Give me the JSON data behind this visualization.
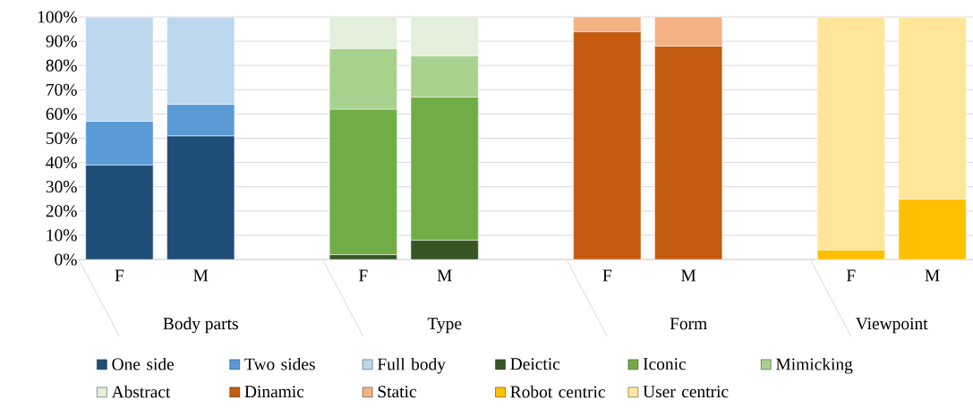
{
  "chart_data": {
    "type": "bar",
    "stacked": true,
    "categories": [
      "F",
      "M",
      null,
      "F",
      "M",
      null,
      "F",
      "M",
      null,
      "F",
      "M"
    ],
    "series": [
      {
        "name": "One side",
        "color": "#1f4e79",
        "values": [
          39,
          51,
          null,
          null,
          null,
          null,
          null,
          null,
          null,
          null,
          null
        ]
      },
      {
        "name": "Two sides",
        "color": "#5b9bd5",
        "values": [
          18,
          13,
          null,
          null,
          null,
          null,
          null,
          null,
          null,
          null,
          null
        ]
      },
      {
        "name": "Full body",
        "color": "#bdd7ee",
        "values": [
          43,
          36,
          null,
          null,
          null,
          null,
          null,
          null,
          null,
          null,
          null
        ]
      },
      {
        "name": "Deictic",
        "color": "#375623",
        "values": [
          null,
          null,
          null,
          2,
          8,
          null,
          null,
          null,
          null,
          null,
          null
        ]
      },
      {
        "name": "Iconic",
        "color": "#70ad47",
        "values": [
          null,
          null,
          null,
          60,
          59,
          null,
          null,
          null,
          null,
          null,
          null
        ]
      },
      {
        "name": "Mimicking",
        "color": "#a9d18e",
        "values": [
          null,
          null,
          null,
          25,
          17,
          null,
          null,
          null,
          null,
          null,
          null
        ]
      },
      {
        "name": "Abstract",
        "color": "#e2efda",
        "values": [
          null,
          null,
          null,
          13,
          16,
          null,
          null,
          null,
          null,
          null,
          null
        ]
      },
      {
        "name": "Dinamic",
        "color": "#c55a11",
        "values": [
          null,
          null,
          null,
          null,
          null,
          null,
          94,
          88,
          null,
          null,
          null
        ]
      },
      {
        "name": "Static",
        "color": "#f4b183",
        "values": [
          null,
          null,
          null,
          null,
          null,
          null,
          6,
          12,
          null,
          null,
          null
        ]
      },
      {
        "name": "Robot centric",
        "color": "#ffc000",
        "values": [
          null,
          null,
          null,
          null,
          null,
          null,
          null,
          null,
          null,
          4,
          25
        ]
      },
      {
        "name": "User centric",
        "color": "#ffe699",
        "values": [
          null,
          null,
          null,
          null,
          null,
          null,
          null,
          null,
          null,
          96,
          75
        ]
      }
    ],
    "ylim": [
      0,
      100
    ],
    "yticks": [
      {
        "value": 0,
        "label": "0%"
      },
      {
        "value": 10,
        "label": "10%"
      },
      {
        "value": 20,
        "label": "20%"
      },
      {
        "value": 30,
        "label": "30%"
      },
      {
        "value": 40,
        "label": "40%"
      },
      {
        "value": 50,
        "label": "50%"
      },
      {
        "value": 60,
        "label": "60%"
      },
      {
        "value": 70,
        "label": "70%"
      },
      {
        "value": 80,
        "label": "80%"
      },
      {
        "value": 90,
        "label": "90%"
      },
      {
        "value": 100,
        "label": "100%"
      }
    ],
    "grid": "y",
    "legend": "bottom",
    "annotations": [
      "Body parts",
      "Type",
      "Form",
      "Viewpoint"
    ]
  }
}
